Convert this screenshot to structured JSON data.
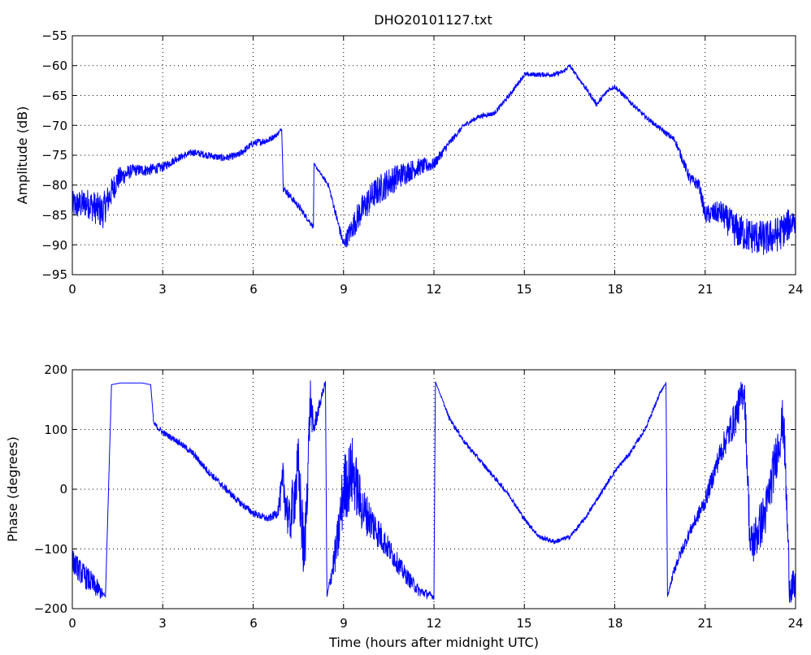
{
  "figure": {
    "title": "DHO20101127.txt",
    "line_color": "#0000ff"
  },
  "chart_data": [
    {
      "type": "line",
      "title": "DHO20101127.txt",
      "xlabel": "",
      "ylabel": "Amplitude (dB)",
      "xlim": [
        0,
        24
      ],
      "ylim": [
        -95,
        -55
      ],
      "xticks": [
        0,
        3,
        6,
        9,
        12,
        15,
        18,
        21,
        24
      ],
      "yticks": [
        -95,
        -90,
        -85,
        -80,
        -75,
        -70,
        -65,
        -60,
        -55
      ],
      "xtick_labels": [
        "0",
        "3",
        "6",
        "9",
        "12",
        "15",
        "18",
        "21",
        "24"
      ],
      "ytick_labels": [
        "−95",
        "−90",
        "−85",
        "−80",
        "−75",
        "−70",
        "−65",
        "−60",
        "−55"
      ],
      "grid": true,
      "series": [
        {
          "color": "#0000ff",
          "x": [
            0.0,
            0.5,
            1.0,
            1.5,
            2.0,
            2.5,
            3.0,
            3.5,
            4.0,
            4.5,
            5.0,
            5.5,
            6.0,
            6.5,
            6.8,
            6.95,
            7.0,
            7.5,
            8.0,
            8.02,
            8.5,
            9.0,
            9.1,
            9.5,
            10.0,
            10.5,
            11.0,
            11.5,
            12.0,
            12.5,
            13.0,
            13.5,
            14.0,
            14.5,
            15.0,
            15.5,
            16.0,
            16.3,
            16.5,
            17.0,
            17.4,
            17.8,
            18.0,
            18.5,
            19.0,
            19.5,
            20.0,
            20.5,
            20.8,
            21.0,
            21.5,
            22.0,
            22.5,
            23.0,
            23.5,
            24.0
          ],
          "y": [
            -83.5,
            -83,
            -84.5,
            -79,
            -77.5,
            -77.5,
            -77,
            -75.5,
            -74.5,
            -75,
            -75.5,
            -75,
            -73,
            -72.5,
            -71.5,
            -70.5,
            -80.5,
            -83.5,
            -87,
            -76.5,
            -80,
            -90,
            -89,
            -85,
            -81.5,
            -79.5,
            -78,
            -77,
            -76.5,
            -73,
            -70,
            -68.5,
            -68,
            -65,
            -61.5,
            -61.5,
            -61.5,
            -61,
            -60,
            -63.5,
            -66.5,
            -64,
            -63.5,
            -66,
            -68.5,
            -70.5,
            -72.5,
            -79,
            -80,
            -85,
            -84.5,
            -87.5,
            -88.5,
            -89,
            -88,
            -85.5
          ],
          "noise": [
            2.5,
            2.5,
            3.0,
            2.0,
            1.0,
            1.0,
            0.8,
            0.6,
            0.6,
            0.6,
            0.6,
            0.6,
            0.6,
            0.6,
            0.4,
            0.3,
            0.6,
            0.6,
            0.4,
            0.2,
            0.4,
            1.0,
            1.5,
            2.5,
            2.5,
            2.5,
            2.0,
            1.5,
            1.0,
            0.6,
            0.4,
            0.4,
            0.4,
            0.4,
            0.4,
            0.4,
            0.4,
            0.4,
            0.3,
            0.4,
            0.4,
            0.4,
            0.4,
            0.4,
            0.4,
            0.4,
            0.6,
            1.0,
            1.0,
            1.5,
            2.0,
            3.0,
            3.0,
            3.0,
            3.0,
            2.5
          ]
        }
      ]
    },
    {
      "type": "line",
      "title": "",
      "xlabel": "Time (hours after midnight UTC)",
      "ylabel": "Phase (degrees)",
      "xlim": [
        0,
        24
      ],
      "ylim": [
        -200,
        200
      ],
      "xticks": [
        0,
        3,
        6,
        9,
        12,
        15,
        18,
        21,
        24
      ],
      "yticks": [
        -200,
        -100,
        0,
        100,
        200
      ],
      "xtick_labels": [
        "0",
        "3",
        "6",
        "9",
        "12",
        "15",
        "18",
        "21",
        "24"
      ],
      "ytick_labels": [
        "−200",
        "−100",
        "0",
        "100",
        "200"
      ],
      "grid": true,
      "series": [
        {
          "color": "#0000ff",
          "x": [
            0.0,
            0.3,
            0.6,
            0.9,
            1.1,
            1.3,
            1.6,
            2.0,
            2.3,
            2.6,
            2.7,
            3.0,
            3.5,
            4.0,
            4.5,
            5.0,
            5.5,
            6.0,
            6.5,
            6.8,
            7.0,
            7.2,
            7.5,
            7.7,
            7.9,
            8.0,
            8.2,
            8.4,
            8.45,
            8.8,
            9.0,
            9.3,
            9.6,
            10.0,
            10.5,
            11.0,
            11.5,
            12.0,
            12.05,
            12.5,
            13.0,
            13.5,
            14.0,
            14.5,
            15.0,
            15.5,
            16.0,
            16.5,
            17.0,
            17.5,
            18.0,
            18.5,
            19.0,
            19.5,
            19.7,
            19.75,
            20.0,
            20.5,
            21.0,
            21.5,
            22.0,
            22.3,
            22.5,
            23.0,
            23.3,
            23.6,
            23.8,
            24.0
          ],
          "y": [
            -120,
            -140,
            -155,
            -170,
            -180,
            175,
            178,
            178,
            178,
            175,
            110,
            95,
            80,
            60,
            30,
            5,
            -20,
            -40,
            -50,
            -40,
            10,
            -60,
            30,
            -120,
            150,
            100,
            140,
            180,
            -180,
            -90,
            0,
            30,
            -30,
            -60,
            -100,
            -140,
            -170,
            -180,
            180,
            120,
            80,
            50,
            20,
            -10,
            -50,
            -80,
            -88,
            -80,
            -50,
            -10,
            30,
            60,
            100,
            160,
            178,
            -180,
            -130,
            -70,
            -20,
            60,
            120,
            170,
            -100,
            -40,
            40,
            120,
            -160,
            -170
          ],
          "noise": [
            20,
            20,
            20,
            15,
            0,
            0,
            0,
            0,
            0,
            0,
            5,
            5,
            5,
            6,
            6,
            6,
            6,
            6,
            6,
            8,
            40,
            40,
            60,
            60,
            40,
            20,
            10,
            5,
            0,
            40,
            60,
            60,
            40,
            30,
            20,
            15,
            10,
            5,
            0,
            4,
            4,
            4,
            4,
            4,
            4,
            4,
            4,
            4,
            4,
            4,
            4,
            4,
            4,
            4,
            0,
            0,
            10,
            10,
            15,
            20,
            30,
            30,
            40,
            40,
            40,
            40,
            30,
            30
          ]
        }
      ]
    }
  ],
  "plots": [
    {
      "ytick_labels": [
        "−95",
        "−90",
        "−85",
        "−80",
        "−75",
        "−70",
        "−65",
        "−60",
        "−55"
      ],
      "xtick_labels": [
        "0",
        "3",
        "6",
        "9",
        "12",
        "15",
        "18",
        "21",
        "24"
      ],
      "ylabel": "Amplitude (dB)"
    },
    {
      "ytick_labels": [
        "−200",
        "−100",
        "0",
        "100",
        "200"
      ],
      "xtick_labels": [
        "0",
        "3",
        "6",
        "9",
        "12",
        "15",
        "18",
        "21",
        "24"
      ],
      "ylabel": "Phase (degrees)",
      "xlabel": "Time (hours after midnight UTC)"
    }
  ]
}
